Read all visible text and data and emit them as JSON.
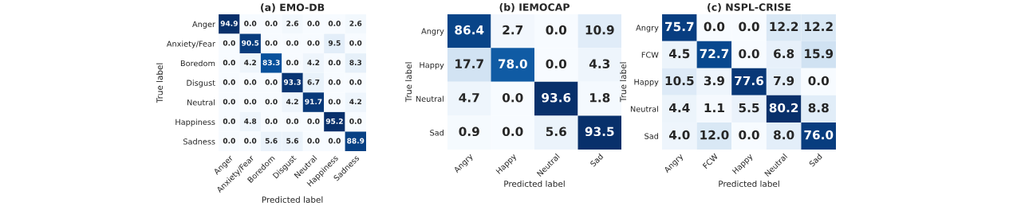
{
  "chart_data": [
    {
      "type": "heatmap",
      "title": "(a) EMO-DB",
      "xlabel": "Predicted label",
      "ylabel": "True label",
      "categories": [
        "Anger",
        "Anxiety/Fear",
        "Boredom",
        "Disgust",
        "Neutral",
        "Happiness",
        "Sadness"
      ],
      "y_categories": [
        "Anger",
        "Anxiety/Fear",
        "Boredom",
        "Disgust",
        "Neutral",
        "Happiness",
        "Sadness"
      ],
      "cells": [
        [
          94.9,
          0.0,
          0.0,
          2.6,
          0.0,
          0.0,
          2.6
        ],
        [
          0.0,
          90.5,
          0.0,
          0.0,
          0.0,
          9.5,
          0.0
        ],
        [
          0.0,
          4.2,
          83.3,
          0.0,
          4.2,
          0.0,
          8.3
        ],
        [
          0.0,
          0.0,
          0.0,
          93.3,
          6.7,
          0.0,
          0.0
        ],
        [
          0.0,
          0.0,
          0.0,
          4.2,
          91.7,
          0.0,
          4.2
        ],
        [
          0.0,
          4.8,
          0.0,
          0.0,
          0.0,
          95.2,
          0.0
        ],
        [
          0.0,
          0.0,
          5.6,
          5.6,
          0.0,
          0.0,
          88.9
        ]
      ],
      "cell_labels": [
        [
          "94.9",
          "0.0",
          "0.0",
          "2.6",
          "0.0",
          "0.0",
          "2.6"
        ],
        [
          "0.0",
          "90.5",
          "0.0",
          "0.0",
          "0.0",
          "9.5",
          "0.0"
        ],
        [
          "0.0",
          "4.2",
          "83.3",
          "0.0",
          "4.2",
          "0.0",
          "8.3"
        ],
        [
          "0.0",
          "0.0",
          "0.0",
          "93.3",
          "6.7",
          "0.0",
          "0.0"
        ],
        [
          "0.0",
          "0.0",
          "0.0",
          "4.2",
          "91.7",
          "0.0",
          "4.2"
        ],
        [
          "0.0",
          "4.8",
          "0.0",
          "0.0",
          "0.0",
          "95.2",
          "0.0"
        ],
        [
          "0.0",
          "0.0",
          "5.6",
          "5.6",
          "0.0",
          "0.0",
          "88.9"
        ]
      ]
    },
    {
      "type": "heatmap",
      "title": "(b) IEMOCAP",
      "xlabel": "Predicted label",
      "ylabel": "True label",
      "categories": [
        "Angry",
        "Happy",
        "Neutral",
        "Sad"
      ],
      "y_categories": [
        "Angry",
        "Happy",
        "Neutral",
        "Sad"
      ],
      "cells": [
        [
          86.4,
          2.7,
          0.0,
          10.9
        ],
        [
          17.7,
          78.0,
          0.0,
          4.3
        ],
        [
          4.7,
          0.0,
          93.6,
          1.8
        ],
        [
          0.9,
          0.0,
          5.6,
          93.5
        ]
      ],
      "cell_labels": [
        [
          "86.4",
          "2.7",
          "0.0",
          "10.9"
        ],
        [
          "17.7",
          "78.0",
          "0.0",
          "4.3"
        ],
        [
          "4.7",
          "0.0",
          "93.6",
          "1.8"
        ],
        [
          "0.9",
          "0.0",
          "5.6",
          "93.5"
        ]
      ]
    },
    {
      "type": "heatmap",
      "title": "(c) NSPL-CRISE",
      "xlabel": "Predicted label",
      "ylabel": "True label",
      "categories": [
        "Angry",
        "FCW",
        "Happy",
        "Neutral",
        "Sad"
      ],
      "y_categories": [
        "Angry",
        "FCW",
        "Happy",
        "Neutral",
        "Sad"
      ],
      "cells": [
        [
          75.7,
          0.0,
          0.0,
          12.2,
          12.2
        ],
        [
          4.5,
          72.7,
          0.0,
          6.8,
          15.9
        ],
        [
          10.5,
          3.9,
          77.6,
          7.9,
          0.0
        ],
        [
          4.4,
          1.1,
          5.5,
          80.2,
          8.8
        ],
        [
          4.0,
          12.0,
          0.0,
          8.0,
          76.0
        ]
      ],
      "cell_labels": [
        [
          "75.7",
          "0.0",
          "0.0",
          "12.2",
          "12.2"
        ],
        [
          "4.5",
          "72.7",
          "0.0",
          "6.8",
          "15.9"
        ],
        [
          "10.5",
          "3.9",
          "77.6",
          "7.9",
          "0.0"
        ],
        [
          "4.4",
          "1.1",
          "5.5",
          "80.2",
          "8.8"
        ],
        [
          "4.0",
          "12.0",
          "0.0",
          "8.0",
          "76.0"
        ]
      ]
    }
  ]
}
